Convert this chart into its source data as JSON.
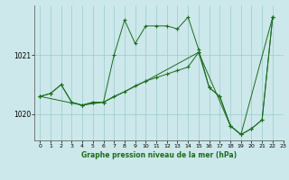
{
  "background_color": "#cce8ea",
  "plot_bg_color": "#cce8ea",
  "line_color": "#1a6e1a",
  "grid_color": "#99cccc",
  "xlabel": "Graphe pression niveau de la mer (hPa)",
  "xlim": [
    -0.5,
    23
  ],
  "ylim": [
    1019.55,
    1021.85
  ],
  "yticks": [
    1020,
    1021
  ],
  "xticks": [
    0,
    1,
    2,
    3,
    4,
    5,
    6,
    7,
    8,
    9,
    10,
    11,
    12,
    13,
    14,
    15,
    16,
    17,
    18,
    19,
    20,
    21,
    22,
    23
  ],
  "series1": [
    [
      0,
      1020.3
    ],
    [
      1,
      1020.35
    ],
    [
      2,
      1020.5
    ],
    [
      3,
      1020.2
    ],
    [
      4,
      1020.15
    ],
    [
      5,
      1020.2
    ],
    [
      6,
      1020.2
    ],
    [
      7,
      1021.0
    ],
    [
      8,
      1021.6
    ],
    [
      9,
      1021.2
    ],
    [
      10,
      1021.5
    ],
    [
      11,
      1021.5
    ],
    [
      12,
      1021.5
    ],
    [
      13,
      1021.45
    ],
    [
      14,
      1021.65
    ],
    [
      15,
      1021.1
    ],
    [
      16,
      1020.45
    ],
    [
      17,
      1020.3
    ],
    [
      18,
      1019.8
    ],
    [
      19,
      1019.65
    ],
    [
      20,
      1019.75
    ],
    [
      21,
      1019.9
    ],
    [
      22,
      1021.65
    ]
  ],
  "series2": [
    [
      0,
      1020.3
    ],
    [
      1,
      1020.35
    ],
    [
      2,
      1020.5
    ],
    [
      3,
      1020.2
    ],
    [
      4,
      1020.15
    ],
    [
      5,
      1020.2
    ],
    [
      6,
      1020.2
    ],
    [
      7,
      1020.3
    ],
    [
      8,
      1020.38
    ],
    [
      9,
      1020.48
    ],
    [
      10,
      1020.56
    ],
    [
      11,
      1020.62
    ],
    [
      12,
      1020.68
    ],
    [
      13,
      1020.74
    ],
    [
      14,
      1020.8
    ],
    [
      15,
      1021.05
    ],
    [
      16,
      1020.45
    ],
    [
      17,
      1020.3
    ],
    [
      18,
      1019.8
    ],
    [
      19,
      1019.65
    ],
    [
      20,
      1019.75
    ],
    [
      21,
      1019.9
    ],
    [
      22,
      1021.65
    ]
  ],
  "series3": [
    [
      0,
      1020.3
    ],
    [
      4,
      1020.15
    ],
    [
      6,
      1020.2
    ],
    [
      10,
      1020.56
    ],
    [
      15,
      1021.05
    ],
    [
      18,
      1019.8
    ],
    [
      19,
      1019.65
    ],
    [
      22,
      1021.65
    ]
  ]
}
